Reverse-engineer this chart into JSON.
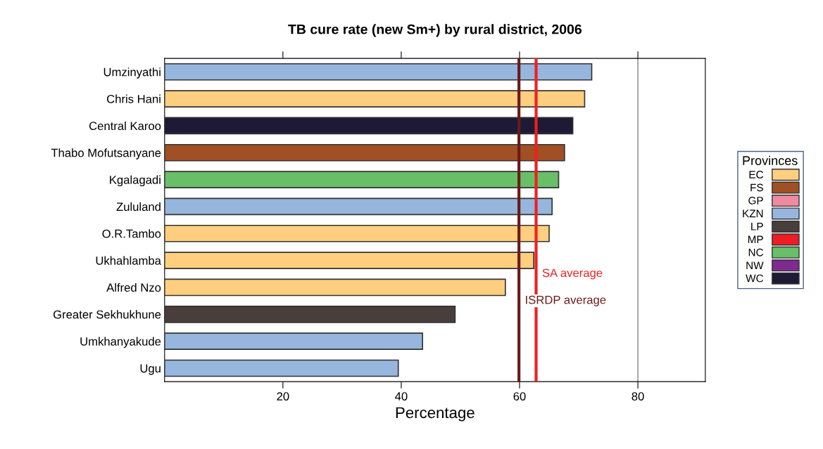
{
  "chart_data": {
    "type": "bar",
    "orientation": "horizontal",
    "title": "TB cure rate (new Sm+) by rural district, 2006",
    "xlabel": "Percentage",
    "categories": [
      "Umzinyathi",
      "Chris Hani",
      "Central Karoo",
      "Thabo Mofutsanyane",
      "Kgalagadi",
      "Zululand",
      "O.R.Tambo",
      "Ukhahlamba",
      "Alfred Nzo",
      "Greater Sekhukhune",
      "Umkhanyakude",
      "Ugu"
    ],
    "series": [
      {
        "name": "EC",
        "color": "#ffcf7f",
        "values": [
          null,
          71.0,
          null,
          null,
          null,
          null,
          65.0,
          62.4,
          57.6,
          null,
          null,
          null
        ]
      },
      {
        "name": "FS",
        "color": "#a05022",
        "values": [
          null,
          null,
          null,
          67.6,
          null,
          null,
          null,
          null,
          null,
          null,
          null,
          null
        ]
      },
      {
        "name": "GP",
        "color": "#f08aa0",
        "values": [
          null,
          null,
          null,
          null,
          null,
          null,
          null,
          null,
          null,
          null,
          null,
          null
        ]
      },
      {
        "name": "KZN",
        "color": "#96b6de",
        "values": [
          72.2,
          null,
          null,
          null,
          null,
          65.5,
          null,
          null,
          null,
          null,
          43.6,
          39.5
        ]
      },
      {
        "name": "LP",
        "color": "#483e3c",
        "values": [
          null,
          null,
          null,
          null,
          null,
          null,
          null,
          null,
          null,
          49.1,
          null,
          null
        ]
      },
      {
        "name": "MP",
        "color": "#ee1c24",
        "values": [
          null,
          null,
          null,
          null,
          null,
          null,
          null,
          null,
          null,
          null,
          null,
          null
        ]
      },
      {
        "name": "NC",
        "color": "#68bf68",
        "values": [
          null,
          null,
          null,
          null,
          66.6,
          null,
          null,
          null,
          null,
          null,
          null,
          null
        ]
      },
      {
        "name": "NW",
        "color": "#7f2a8e",
        "values": [
          null,
          null,
          null,
          null,
          null,
          null,
          null,
          null,
          null,
          null,
          null,
          null
        ]
      },
      {
        "name": "WC",
        "color": "#1e1a35",
        "values": [
          null,
          null,
          69.0,
          null,
          null,
          null,
          null,
          null,
          null,
          null,
          null,
          null
        ]
      }
    ],
    "xlim": [
      0,
      91.4
    ],
    "xticks": [
      20,
      40,
      60,
      80
    ],
    "ref_lines": [
      {
        "axis": "x",
        "value": 80,
        "color": "#8a8080"
      },
      {
        "axis": "x",
        "value": 59.9,
        "label": "ISRDP average",
        "color": "#6b1a1a"
      },
      {
        "axis": "x",
        "value": 62.8,
        "label": "SA average",
        "color": "#ee2020"
      }
    ],
    "legend": "right",
    "legend_title": "Provinces"
  }
}
